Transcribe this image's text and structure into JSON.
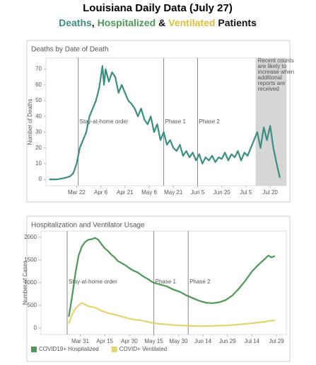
{
  "title": "Louisiana Daily Data (July 27)",
  "subtitle": [
    {
      "text": "Deaths",
      "color": "#3a8f80"
    },
    {
      "text": ",",
      "color": "#111111"
    },
    {
      "text": "Hospitalized",
      "color": "#4a9a55"
    },
    {
      "text": "&",
      "color": "#111111"
    },
    {
      "text": "Ventilated",
      "color": "#d9bf3a"
    },
    {
      "text": "Patients",
      "color": "#111111"
    }
  ],
  "chart_data": [
    {
      "type": "line",
      "title": "Deaths by Date of Death",
      "y_label": "Number of Deaths",
      "x": [
        65,
        70,
        75,
        78,
        80,
        82,
        84,
        86,
        88,
        90,
        92,
        94,
        96,
        98,
        99,
        100,
        102,
        104,
        106,
        108,
        110,
        112,
        114,
        116,
        118,
        120,
        122,
        124,
        126,
        128,
        130,
        132,
        134,
        136,
        138,
        140,
        142,
        144,
        146,
        148,
        150,
        152,
        154,
        156,
        158,
        160,
        162,
        164,
        166,
        168,
        170,
        172,
        174,
        176,
        178,
        180,
        182,
        184,
        186,
        188,
        190,
        192,
        194,
        196,
        198,
        200,
        202,
        204,
        206,
        208
      ],
      "series": [
        {
          "color": "#3a8f80",
          "values": [
            0,
            0,
            1,
            2,
            4,
            10,
            20,
            25,
            30,
            40,
            45,
            50,
            58,
            72,
            60,
            70,
            62,
            68,
            65,
            55,
            60,
            55,
            50,
            48,
            45,
            40,
            45,
            38,
            35,
            40,
            30,
            35,
            25,
            30,
            22,
            25,
            20,
            18,
            22,
            15,
            18,
            14,
            17,
            12,
            16,
            10,
            14,
            12,
            15,
            11,
            14,
            13,
            17,
            12,
            16,
            14,
            18,
            12,
            17,
            15,
            20,
            25,
            30,
            20,
            33,
            25,
            34,
            20,
            10,
            1
          ]
        }
      ],
      "xlim": [
        63,
        212
      ],
      "xticks": [
        {
          "value": 82,
          "label": "Mar 22"
        },
        {
          "value": 97,
          "label": "Apr 6"
        },
        {
          "value": 112,
          "label": "Apr 21"
        },
        {
          "value": 127,
          "label": "May 6"
        },
        {
          "value": 142,
          "label": "May 21"
        },
        {
          "value": 157,
          "label": "Jun 5"
        },
        {
          "value": 172,
          "label": "Jun 20"
        },
        {
          "value": 187,
          "label": "Jul 5"
        },
        {
          "value": 202,
          "label": "Jul 20"
        }
      ],
      "ylim": [
        -4,
        77
      ],
      "yticks": [
        0,
        10,
        20,
        30,
        40,
        50,
        60,
        70
      ],
      "annotations": [
        {
          "x": 83,
          "label": "Stay-at-home order"
        },
        {
          "x": 136,
          "label": "Phase 1"
        },
        {
          "x": 157,
          "label": "Phase 2"
        }
      ],
      "shade": {
        "from": 193,
        "label": "Recent counts are likely to increase when additional reports are received"
      }
    },
    {
      "type": "line",
      "title": "Hospitalization and Ventilator Usage",
      "y_label": "Number of Cases",
      "x": [
        84,
        86,
        88,
        90,
        92,
        94,
        96,
        98,
        100,
        102,
        104,
        106,
        108,
        110,
        112,
        114,
        116,
        118,
        120,
        122,
        124,
        126,
        128,
        130,
        132,
        134,
        136,
        140,
        144,
        148,
        152,
        156,
        160,
        164,
        168,
        172,
        176,
        180,
        184,
        188,
        192,
        196,
        200,
        204,
        206,
        208,
        210
      ],
      "series": [
        {
          "name": "COVID19+ Hospitalized",
          "color": "#4a9a55",
          "values": [
            250,
            700,
            1200,
            1600,
            1800,
            1900,
            1950,
            1960,
            1990,
            1950,
            1850,
            1760,
            1700,
            1620,
            1560,
            1480,
            1440,
            1400,
            1350,
            1300,
            1260,
            1230,
            1180,
            1130,
            1090,
            1040,
            1000,
            960,
            920,
            850,
            800,
            720,
            660,
            600,
            560,
            550,
            570,
            620,
            720,
            870,
            1050,
            1250,
            1400,
            1530,
            1600,
            1560,
            1590
          ]
        },
        {
          "name": "COVID+ Ventilated",
          "color": "#e6d36a",
          "values": [
            100,
            300,
            430,
            500,
            560,
            520,
            480,
            470,
            450,
            420,
            380,
            360,
            330,
            315,
            300,
            280,
            260,
            240,
            220,
            205,
            190,
            180,
            170,
            155,
            140,
            125,
            110,
            95,
            80,
            70,
            60,
            55,
            50,
            45,
            45,
            50,
            55,
            60,
            70,
            80,
            95,
            110,
            125,
            140,
            160,
            165,
            170
          ]
        }
      ],
      "xlim": [
        67,
        217
      ],
      "xticks": [
        {
          "value": 91,
          "label": "Mar 31"
        },
        {
          "value": 106,
          "label": "Apr 15"
        },
        {
          "value": 121,
          "label": "Apr 30"
        },
        {
          "value": 136,
          "label": "May 15"
        },
        {
          "value": 151,
          "label": "May 30"
        },
        {
          "value": 166,
          "label": "Jun 14"
        },
        {
          "value": 181,
          "label": "Jun 29"
        },
        {
          "value": 196,
          "label": "Jul 14"
        },
        {
          "value": 211,
          "label": "Jul 29"
        }
      ],
      "ylim": [
        -140,
        2140
      ],
      "yticks": [
        0,
        500,
        1000,
        1500,
        2000
      ],
      "annotations": [
        {
          "x": 83,
          "label": "Stay-at-home order"
        },
        {
          "x": 136,
          "label": "Phase 1"
        },
        {
          "x": 157,
          "label": "Phase 2"
        }
      ]
    }
  ]
}
